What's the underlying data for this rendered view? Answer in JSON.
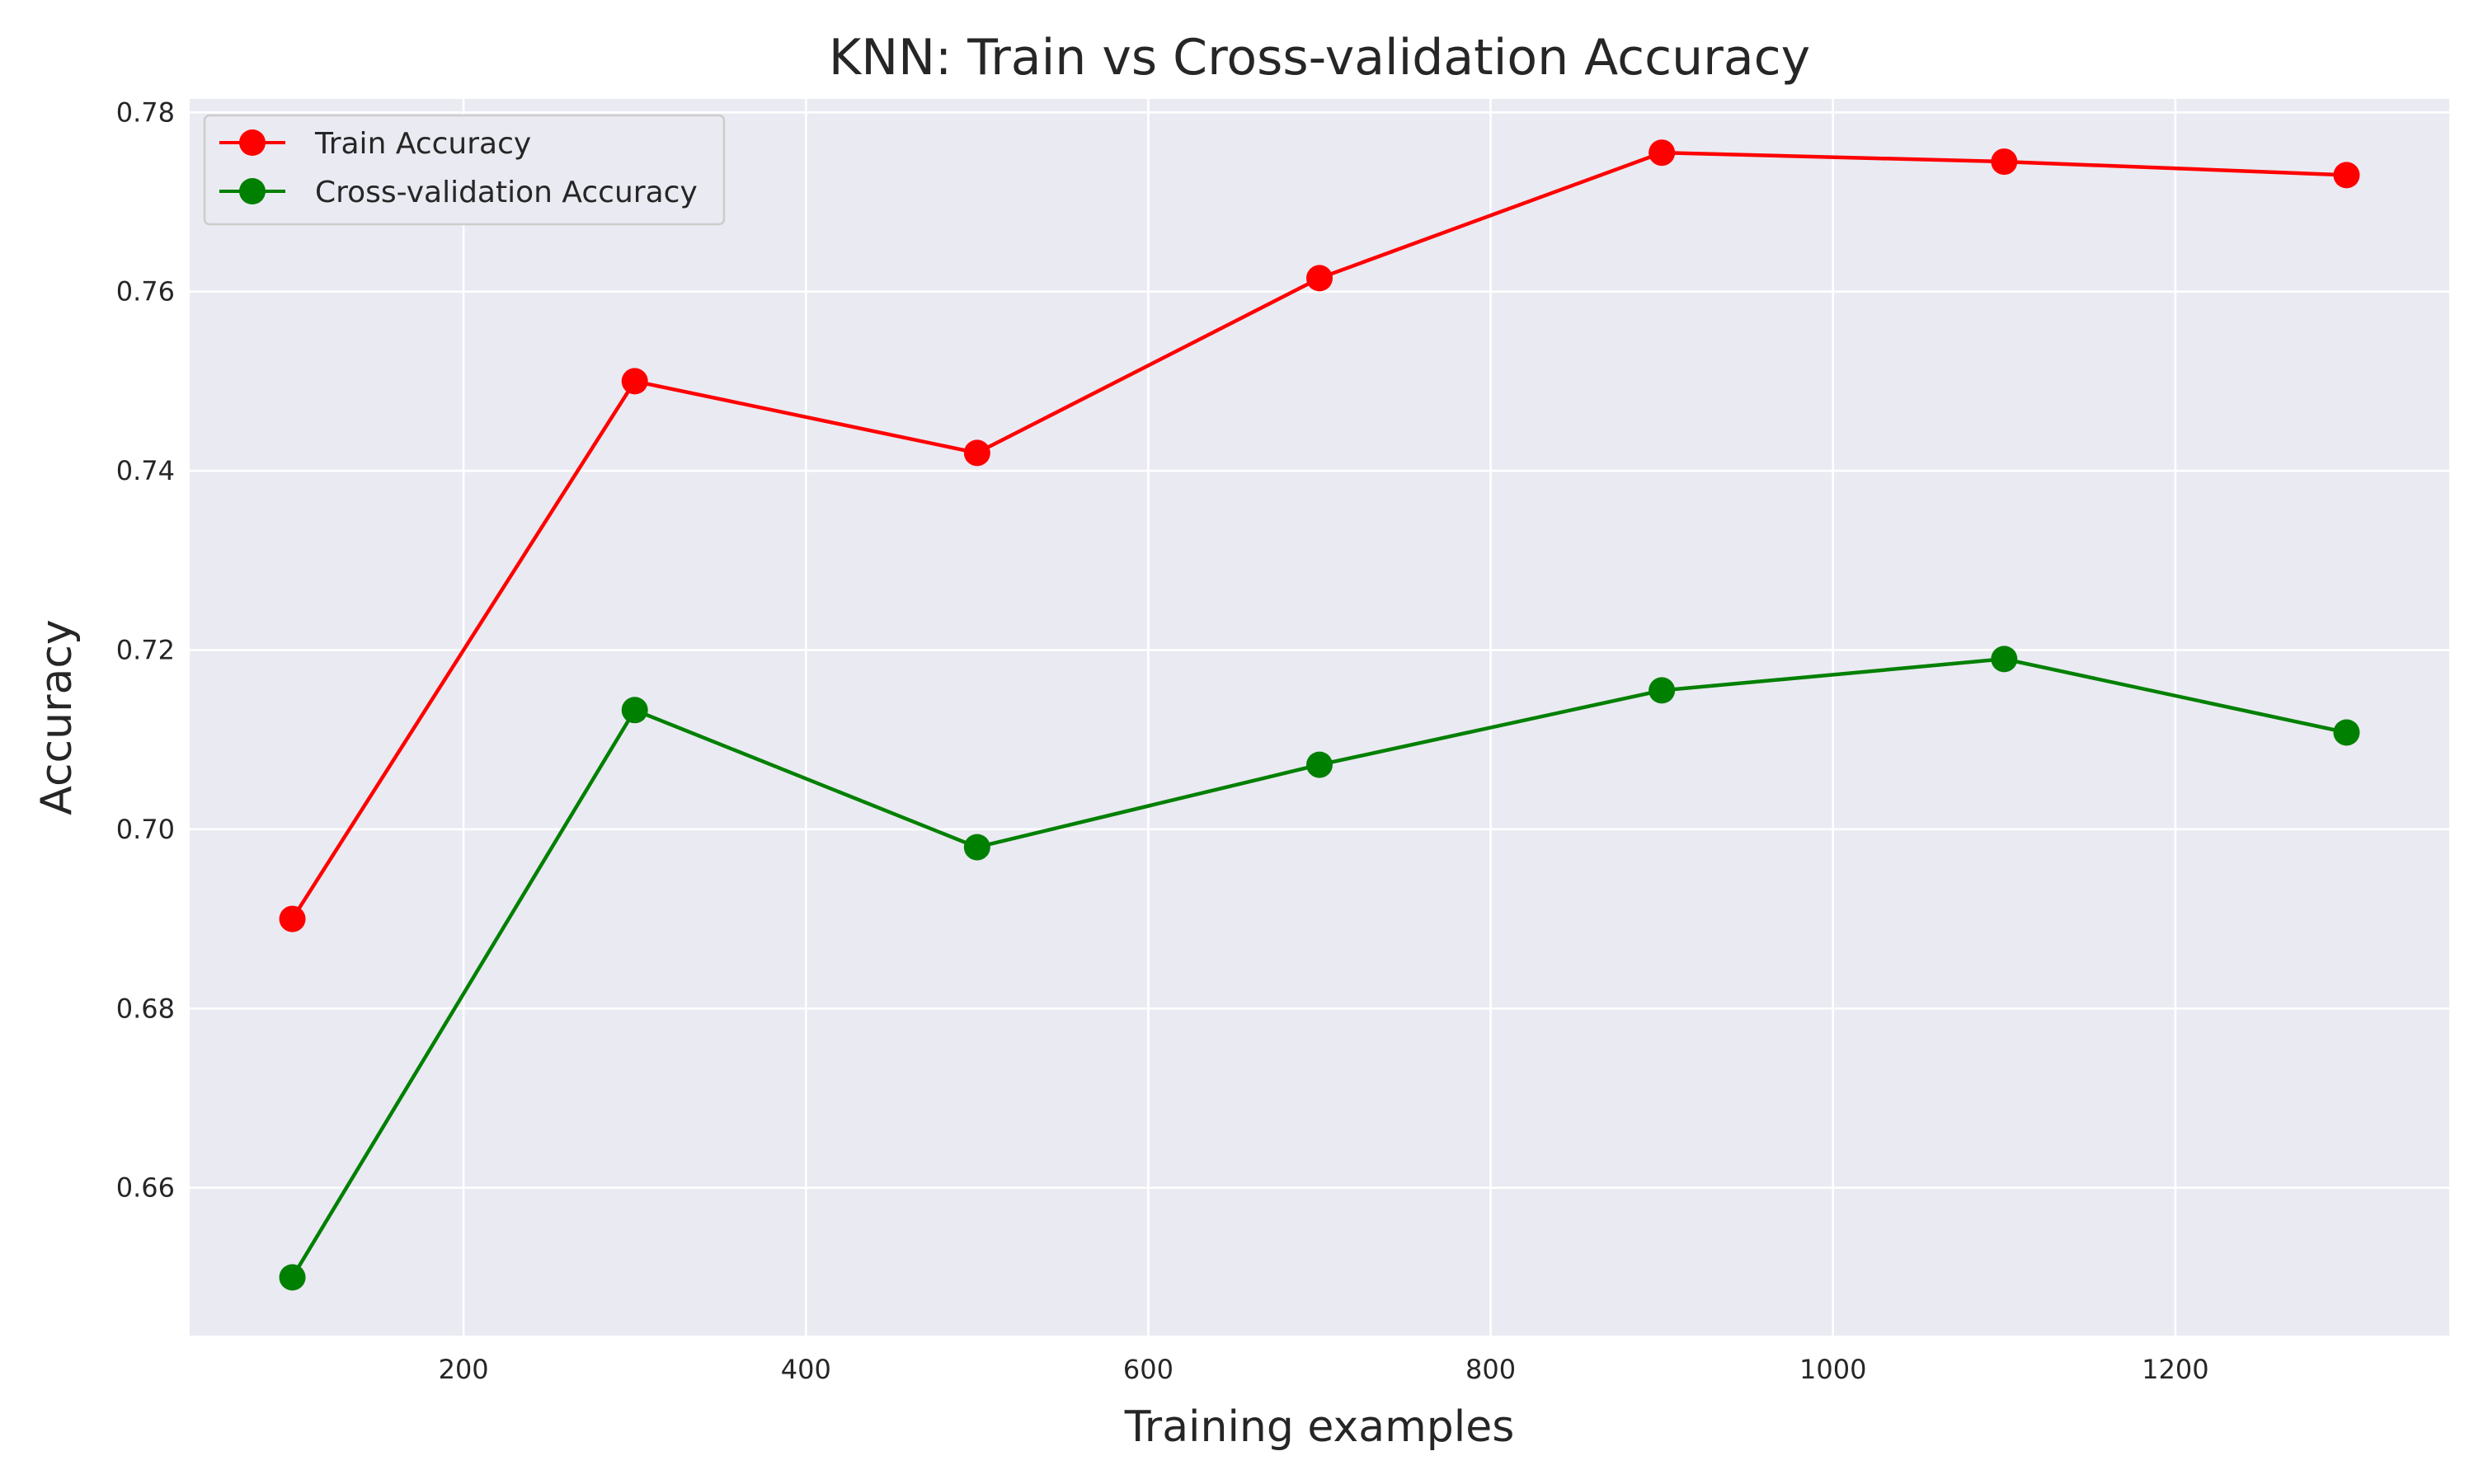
{
  "chart_data": {
    "type": "line",
    "title": "KNN: Train vs Cross-validation Accuracy",
    "xlabel": "Training examples",
    "ylabel": "Accuracy",
    "x": [
      100,
      300,
      500,
      700,
      900,
      1100,
      1300
    ],
    "xlim": [
      40,
      1360
    ],
    "ylim": [
      0.6435,
      0.7815
    ],
    "xticks": [
      200,
      400,
      600,
      800,
      1000,
      1200
    ],
    "yticks": [
      0.66,
      0.68,
      0.7,
      0.72,
      0.74,
      0.76,
      0.78
    ],
    "ytick_labels": [
      "0.66",
      "0.68",
      "0.70",
      "0.72",
      "0.74",
      "0.76",
      "0.78"
    ],
    "grid": true,
    "legend_position": "top-left",
    "series": [
      {
        "name": "Train Accuracy",
        "color": "#ff0000",
        "values": [
          0.69,
          0.75,
          0.742,
          0.7615,
          0.7755,
          0.7745,
          0.773
        ]
      },
      {
        "name": "Cross-validation Accuracy",
        "color": "#008000",
        "values": [
          0.65,
          0.7133,
          0.698,
          0.7072,
          0.7155,
          0.719,
          0.7108
        ]
      }
    ]
  }
}
